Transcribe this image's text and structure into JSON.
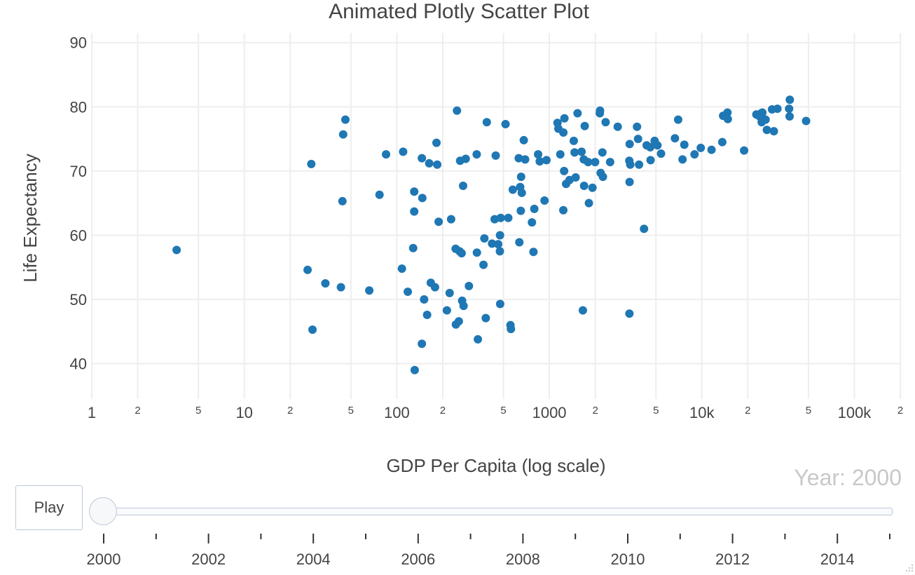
{
  "chart_data": {
    "type": "scatter",
    "title": "Animated Plotly Scatter Plot",
    "xlabel": "GDP Per Capita (log scale)",
    "ylabel": "Life Expectancy",
    "x_scale": "log",
    "xlim": [
      1,
      200000
    ],
    "ylim": [
      34.5,
      91.5
    ],
    "grid": true,
    "marker_color": "#1f77b4",
    "x_ticks_major": [
      {
        "value": 1,
        "label": "1"
      },
      {
        "value": 10,
        "label": "10"
      },
      {
        "value": 100,
        "label": "100"
      },
      {
        "value": 1000,
        "label": "1000"
      },
      {
        "value": 10000,
        "label": "10k"
      },
      {
        "value": 100000,
        "label": "100k"
      }
    ],
    "x_ticks_minor": [
      {
        "value": 2,
        "label": "2"
      },
      {
        "value": 5,
        "label": "5"
      },
      {
        "value": 20,
        "label": "2"
      },
      {
        "value": 50,
        "label": "5"
      },
      {
        "value": 200,
        "label": "2"
      },
      {
        "value": 500,
        "label": "5"
      },
      {
        "value": 2000,
        "label": "2"
      },
      {
        "value": 5000,
        "label": "5"
      },
      {
        "value": 20000,
        "label": "2"
      },
      {
        "value": 50000,
        "label": "5"
      },
      {
        "value": 200000,
        "label": "2"
      }
    ],
    "y_ticks": [
      40,
      50,
      60,
      70,
      80,
      90
    ],
    "current_year_label": "Year: 2000",
    "points": [
      {
        "x": 3.6,
        "y": 57.7
      },
      {
        "x": 26,
        "y": 54.6
      },
      {
        "x": 27.5,
        "y": 71.1
      },
      {
        "x": 28,
        "y": 45.3
      },
      {
        "x": 34,
        "y": 52.5
      },
      {
        "x": 43,
        "y": 51.9
      },
      {
        "x": 44,
        "y": 65.3
      },
      {
        "x": 44.5,
        "y": 75.7
      },
      {
        "x": 46,
        "y": 78.0
      },
      {
        "x": 66,
        "y": 51.4
      },
      {
        "x": 77,
        "y": 66.3
      },
      {
        "x": 85,
        "y": 72.6
      },
      {
        "x": 108,
        "y": 54.8
      },
      {
        "x": 110,
        "y": 73.0
      },
      {
        "x": 118,
        "y": 51.2
      },
      {
        "x": 128,
        "y": 58.0
      },
      {
        "x": 130,
        "y": 63.7
      },
      {
        "x": 130,
        "y": 66.8
      },
      {
        "x": 131,
        "y": 39.0
      },
      {
        "x": 146,
        "y": 72.0
      },
      {
        "x": 147,
        "y": 65.8
      },
      {
        "x": 146,
        "y": 43.1
      },
      {
        "x": 151,
        "y": 50.0
      },
      {
        "x": 158,
        "y": 47.6
      },
      {
        "x": 163,
        "y": 71.2
      },
      {
        "x": 167,
        "y": 52.6
      },
      {
        "x": 178,
        "y": 51.9
      },
      {
        "x": 182,
        "y": 74.4
      },
      {
        "x": 184,
        "y": 71.0
      },
      {
        "x": 188,
        "y": 62.1
      },
      {
        "x": 213,
        "y": 48.3
      },
      {
        "x": 222,
        "y": 51.0
      },
      {
        "x": 227,
        "y": 62.5
      },
      {
        "x": 243,
        "y": 57.9
      },
      {
        "x": 244,
        "y": 46.1
      },
      {
        "x": 248,
        "y": 79.4
      },
      {
        "x": 255,
        "y": 46.6
      },
      {
        "x": 258,
        "y": 57.5
      },
      {
        "x": 260,
        "y": 71.6
      },
      {
        "x": 266,
        "y": 57.2
      },
      {
        "x": 268,
        "y": 49.8
      },
      {
        "x": 272,
        "y": 67.7
      },
      {
        "x": 274,
        "y": 49.0
      },
      {
        "x": 283,
        "y": 71.9
      },
      {
        "x": 297,
        "y": 52.1
      },
      {
        "x": 334,
        "y": 72.6
      },
      {
        "x": 335,
        "y": 57.3
      },
      {
        "x": 340,
        "y": 43.8
      },
      {
        "x": 370,
        "y": 55.4
      },
      {
        "x": 375,
        "y": 59.5
      },
      {
        "x": 383,
        "y": 47.1
      },
      {
        "x": 389,
        "y": 77.6
      },
      {
        "x": 421,
        "y": 58.7
      },
      {
        "x": 438,
        "y": 62.5
      },
      {
        "x": 445,
        "y": 72.4
      },
      {
        "x": 462,
        "y": 58.6
      },
      {
        "x": 474,
        "y": 57.5
      },
      {
        "x": 476,
        "y": 49.3
      },
      {
        "x": 475,
        "y": 60.0
      },
      {
        "x": 480,
        "y": 62.7
      },
      {
        "x": 516,
        "y": 77.3
      },
      {
        "x": 538,
        "y": 62.7
      },
      {
        "x": 556,
        "y": 46.0
      },
      {
        "x": 560,
        "y": 45.4
      },
      {
        "x": 576,
        "y": 67.1
      },
      {
        "x": 630,
        "y": 72.0
      },
      {
        "x": 636,
        "y": 58.9
      },
      {
        "x": 644,
        "y": 67.5
      },
      {
        "x": 650,
        "y": 63.8
      },
      {
        "x": 653,
        "y": 69.1
      },
      {
        "x": 660,
        "y": 66.6
      },
      {
        "x": 680,
        "y": 74.8
      },
      {
        "x": 694,
        "y": 71.8
      },
      {
        "x": 769,
        "y": 62.0
      },
      {
        "x": 787,
        "y": 57.4
      },
      {
        "x": 797,
        "y": 64.1
      },
      {
        "x": 844,
        "y": 72.6
      },
      {
        "x": 865,
        "y": 71.5
      },
      {
        "x": 930,
        "y": 65.4
      },
      {
        "x": 958,
        "y": 71.7
      },
      {
        "x": 1131,
        "y": 77.5
      },
      {
        "x": 1146,
        "y": 76.6
      },
      {
        "x": 1180,
        "y": 72.6
      },
      {
        "x": 1235,
        "y": 63.9
      },
      {
        "x": 1236,
        "y": 76.0
      },
      {
        "x": 1250,
        "y": 70.0
      },
      {
        "x": 1256,
        "y": 78.2
      },
      {
        "x": 1288,
        "y": 68.0
      },
      {
        "x": 1355,
        "y": 68.6
      },
      {
        "x": 1446,
        "y": 74.7
      },
      {
        "x": 1464,
        "y": 72.9
      },
      {
        "x": 1487,
        "y": 69.0
      },
      {
        "x": 1531,
        "y": 79.0
      },
      {
        "x": 1627,
        "y": 73.0
      },
      {
        "x": 1659,
        "y": 48.3
      },
      {
        "x": 1682,
        "y": 71.8
      },
      {
        "x": 1690,
        "y": 67.7
      },
      {
        "x": 1706,
        "y": 77.0
      },
      {
        "x": 1796,
        "y": 71.4
      },
      {
        "x": 1817,
        "y": 65.0
      },
      {
        "x": 1918,
        "y": 67.4
      },
      {
        "x": 1996,
        "y": 71.4
      },
      {
        "x": 2143,
        "y": 79.0
      },
      {
        "x": 2150,
        "y": 79.4
      },
      {
        "x": 2170,
        "y": 69.7
      },
      {
        "x": 2228,
        "y": 72.9
      },
      {
        "x": 2245,
        "y": 69.1
      },
      {
        "x": 2339,
        "y": 77.6
      },
      {
        "x": 2504,
        "y": 71.4
      },
      {
        "x": 2808,
        "y": 76.9
      },
      {
        "x": 3350,
        "y": 47.8
      },
      {
        "x": 3344,
        "y": 71.6
      },
      {
        "x": 3358,
        "y": 68.3
      },
      {
        "x": 3362,
        "y": 74.2
      },
      {
        "x": 3394,
        "y": 71.0
      },
      {
        "x": 3758,
        "y": 76.9
      },
      {
        "x": 3817,
        "y": 75.0
      },
      {
        "x": 3874,
        "y": 71.0
      },
      {
        "x": 4177,
        "y": 61.0
      },
      {
        "x": 4347,
        "y": 74.0
      },
      {
        "x": 4590,
        "y": 73.7
      },
      {
        "x": 4610,
        "y": 71.7
      },
      {
        "x": 4902,
        "y": 74.7
      },
      {
        "x": 5115,
        "y": 74.0
      },
      {
        "x": 5400,
        "y": 72.7
      },
      {
        "x": 6660,
        "y": 75.1
      },
      {
        "x": 6992,
        "y": 78.0
      },
      {
        "x": 7469,
        "y": 71.8
      },
      {
        "x": 7674,
        "y": 74.1
      },
      {
        "x": 8953,
        "y": 72.6
      },
      {
        "x": 9834,
        "y": 73.6
      },
      {
        "x": 11571,
        "y": 73.3
      },
      {
        "x": 13615,
        "y": 74.5
      },
      {
        "x": 13786,
        "y": 78.6
      },
      {
        "x": 14717,
        "y": 79.1
      },
      {
        "x": 14799,
        "y": 78.1
      },
      {
        "x": 18928,
        "y": 73.2
      },
      {
        "x": 22757,
        "y": 78.8
      },
      {
        "x": 23942,
        "y": 78.5
      },
      {
        "x": 24487,
        "y": 79.0
      },
      {
        "x": 24668,
        "y": 77.6
      },
      {
        "x": 24930,
        "y": 79.1
      },
      {
        "x": 25185,
        "y": 78.2
      },
      {
        "x": 26175,
        "y": 78.0
      },
      {
        "x": 26678,
        "y": 76.4
      },
      {
        "x": 28850,
        "y": 79.6
      },
      {
        "x": 29660,
        "y": 76.2
      },
      {
        "x": 31290,
        "y": 79.7
      },
      {
        "x": 37325,
        "y": 79.7
      },
      {
        "x": 37612,
        "y": 78.5
      },
      {
        "x": 37720,
        "y": 81.1
      },
      {
        "x": 48243,
        "y": 77.8
      }
    ]
  },
  "animation": {
    "play_label": "Play",
    "slider_labels": [
      "2000",
      "2002",
      "2004",
      "2006",
      "2008",
      "2010",
      "2012",
      "2014"
    ],
    "slider_year_start": 2000,
    "slider_year_end": 2015,
    "slider_value": 2000
  },
  "colors": {
    "marker": "#1f77b4",
    "grid": "#eeeeee",
    "text": "#444444",
    "year_label": "#c8c8c8",
    "slider_border": "#bec8d9"
  }
}
